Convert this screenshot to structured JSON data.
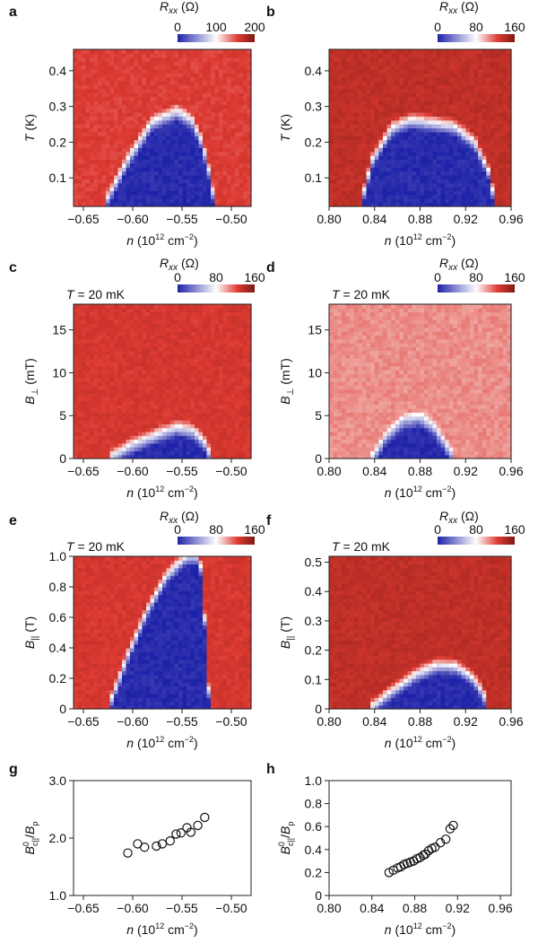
{
  "figure_type": "multi-panel heatmap and scatter figure",
  "cbar_title": "R_xx (Ω)",
  "chart_data": [
    {
      "panel": "a",
      "type": "heatmap",
      "xlabel": "n (10^12 cm^-2)",
      "ylabel": "T (K)",
      "x_ticks": [
        -0.65,
        -0.6,
        -0.55,
        -0.5
      ],
      "y_ticks": [
        0.1,
        0.2,
        0.3,
        0.4
      ],
      "x_tick_labels": [
        "−0.65",
        "−0.60",
        "−0.55",
        "−0.50"
      ],
      "y_tick_labels": [
        "0.1",
        "0.2",
        "0.3",
        "0.4"
      ],
      "xlim": [
        -0.66,
        -0.48
      ],
      "ylim": [
        0.02,
        0.46
      ],
      "colorbar": {
        "label": "R_xx (Ω)",
        "range": [
          0,
          200
        ],
        "ticks": [
          0,
          100,
          200
        ],
        "tick_labels": [
          "0",
          "100",
          "200"
        ]
      },
      "colormap": [
        "#1e22a8",
        "#ffffff",
        "#dd3a32",
        "#7d1a12"
      ],
      "annotation": "",
      "superconducting_dome": {
        "x": [
          -0.628,
          -0.605,
          -0.58,
          -0.555,
          -0.54,
          -0.53,
          -0.522,
          -0.517
        ],
        "y": [
          0.03,
          0.15,
          0.255,
          0.285,
          0.26,
          0.2,
          0.11,
          0.03
        ]
      },
      "background_level": 0.78
    },
    {
      "panel": "b",
      "type": "heatmap",
      "xlabel": "n (10^12 cm^-2)",
      "ylabel": "T (K)",
      "x_ticks": [
        0.8,
        0.84,
        0.88,
        0.92,
        0.96
      ],
      "y_ticks": [
        0.1,
        0.2,
        0.3,
        0.4
      ],
      "x_tick_labels": [
        "0.80",
        "0.84",
        "0.88",
        "0.92",
        "0.96"
      ],
      "y_tick_labels": [
        "0.1",
        "0.2",
        "0.3",
        "0.4"
      ],
      "xlim": [
        0.8,
        0.96
      ],
      "ylim": [
        0.02,
        0.46
      ],
      "colorbar": {
        "label": "R_xx (Ω)",
        "range": [
          0,
          160
        ],
        "ticks": [
          0,
          80,
          160
        ],
        "tick_labels": [
          "0",
          "80",
          "160"
        ]
      },
      "colormap": [
        "#1e22a8",
        "#ffffff",
        "#dd3a32",
        "#7d1a12"
      ],
      "annotation": "",
      "superconducting_dome": {
        "x": [
          0.828,
          0.838,
          0.855,
          0.872,
          0.89,
          0.91,
          0.928,
          0.94,
          0.946
        ],
        "y": [
          0.03,
          0.15,
          0.24,
          0.262,
          0.255,
          0.245,
          0.2,
          0.12,
          0.03
        ]
      },
      "background_level": 0.85
    },
    {
      "panel": "c",
      "type": "heatmap",
      "xlabel": "n (10^12 cm^-2)",
      "ylabel": "B⊥ (mT)",
      "x_ticks": [
        -0.65,
        -0.6,
        -0.55,
        -0.5
      ],
      "y_ticks": [
        0,
        5,
        10,
        15
      ],
      "x_tick_labels": [
        "−0.65",
        "−0.60",
        "−0.55",
        "−0.50"
      ],
      "y_tick_labels": [
        "0",
        "5",
        "10",
        "15"
      ],
      "xlim": [
        -0.66,
        -0.48
      ],
      "ylim": [
        0,
        18
      ],
      "colorbar": {
        "label": "R_xx (Ω)",
        "range": [
          0,
          160
        ],
        "ticks": [
          0,
          80,
          160
        ],
        "tick_labels": [
          "0",
          "80",
          "160"
        ]
      },
      "colormap": [
        "#1e22a8",
        "#ffffff",
        "#dd3a32",
        "#7d1a12"
      ],
      "annotation": "T = 20 mK",
      "superconducting_dome": {
        "x": [
          -0.625,
          -0.6,
          -0.575,
          -0.555,
          -0.54,
          -0.528,
          -0.52
        ],
        "y": [
          0,
          1.6,
          2.8,
          3.6,
          3.3,
          2.0,
          0
        ]
      },
      "background_level": 0.8
    },
    {
      "panel": "d",
      "type": "heatmap",
      "xlabel": "n (10^12 cm^-2)",
      "ylabel": "B⊥ (mT)",
      "x_ticks": [
        0.8,
        0.84,
        0.88,
        0.92,
        0.96
      ],
      "y_ticks": [
        0,
        5,
        10,
        15
      ],
      "x_tick_labels": [
        "0.80",
        "0.84",
        "0.88",
        "0.92",
        "0.96"
      ],
      "y_tick_labels": [
        "0",
        "5",
        "10",
        "15"
      ],
      "xlim": [
        0.8,
        0.96
      ],
      "ylim": [
        0,
        18
      ],
      "colorbar": {
        "label": "R_xx (Ω)",
        "range": [
          0,
          160
        ],
        "ticks": [
          0,
          80,
          160
        ],
        "tick_labels": [
          "0",
          "80",
          "160"
        ]
      },
      "colormap": [
        "#1e22a8",
        "#ffffff",
        "#dd3a32",
        "#7d1a12"
      ],
      "annotation": "T = 20 mK",
      "superconducting_dome": {
        "x": [
          0.838,
          0.85,
          0.865,
          0.88,
          0.892,
          0.9,
          0.91
        ],
        "y": [
          0,
          2.5,
          4.4,
          4.7,
          3.6,
          2.0,
          0
        ]
      },
      "background_level": 0.66
    },
    {
      "panel": "e",
      "type": "heatmap",
      "xlabel": "n (10^12 cm^-2)",
      "ylabel": "B∥ (T)",
      "x_ticks": [
        -0.65,
        -0.6,
        -0.55,
        -0.5
      ],
      "y_ticks": [
        0,
        0.2,
        0.4,
        0.6,
        0.8,
        1.0
      ],
      "x_tick_labels": [
        "−0.65",
        "−0.60",
        "−0.55",
        "−0.50"
      ],
      "y_tick_labels": [
        "0",
        "0.2",
        "0.4",
        "0.6",
        "0.8",
        "1.0"
      ],
      "xlim": [
        -0.66,
        -0.48
      ],
      "ylim": [
        0,
        1.0
      ],
      "colorbar": {
        "label": "R_xx (Ω)",
        "range": [
          0,
          160
        ],
        "ticks": [
          0,
          80,
          160
        ],
        "tick_labels": [
          "0",
          "80",
          "160"
        ]
      },
      "colormap": [
        "#1e22a8",
        "#ffffff",
        "#dd3a32",
        "#7d1a12"
      ],
      "annotation": "T = 20 mK",
      "superconducting_dome": {
        "x": [
          -0.625,
          -0.605,
          -0.585,
          -0.565,
          -0.545,
          -0.532,
          -0.526,
          -0.522
        ],
        "y": [
          0,
          0.35,
          0.65,
          0.88,
          1.0,
          1.0,
          0.5,
          0
        ]
      },
      "background_level": 0.8
    },
    {
      "panel": "f",
      "type": "heatmap",
      "xlabel": "n (10^12 cm^-2)",
      "ylabel": "B∥ (T)",
      "x_ticks": [
        0.8,
        0.84,
        0.88,
        0.92,
        0.96
      ],
      "y_ticks": [
        0,
        0.1,
        0.2,
        0.3,
        0.4,
        0.5
      ],
      "x_tick_labels": [
        "0.80",
        "0.84",
        "0.88",
        "0.92",
        "0.96"
      ],
      "y_tick_labels": [
        "0",
        "0.1",
        "0.2",
        "0.3",
        "0.4",
        "0.5"
      ],
      "xlim": [
        0.8,
        0.96
      ],
      "ylim": [
        0,
        0.52
      ],
      "colorbar": {
        "label": "R_xx (Ω)",
        "range": [
          0,
          160
        ],
        "ticks": [
          0,
          80,
          160
        ],
        "tick_labels": [
          "0",
          "80",
          "160"
        ]
      },
      "colormap": [
        "#1e22a8",
        "#ffffff",
        "#dd3a32",
        "#7d1a12"
      ],
      "annotation": "T = 20 mK",
      "superconducting_dome": {
        "x": [
          0.835,
          0.855,
          0.875,
          0.895,
          0.912,
          0.925,
          0.935,
          0.94
        ],
        "y": [
          0,
          0.06,
          0.115,
          0.15,
          0.145,
          0.11,
          0.06,
          0
        ]
      },
      "background_level": 0.85
    },
    {
      "panel": "g",
      "type": "scatter",
      "xlabel": "n (10^12 cm^-2)",
      "ylabel": "B0_c∥/B_p",
      "x_ticks": [
        -0.65,
        -0.6,
        -0.55,
        -0.5
      ],
      "y_ticks": [
        1.0,
        2.0,
        3.0
      ],
      "x_tick_labels": [
        "−0.65",
        "−0.60",
        "−0.55",
        "−0.50"
      ],
      "y_tick_labels": [
        "1.0",
        "2.0",
        "3.0"
      ],
      "xlim": [
        -0.66,
        -0.48
      ],
      "ylim": [
        1.0,
        3.0
      ],
      "x": [
        -0.605,
        -0.595,
        -0.588,
        -0.576,
        -0.57,
        -0.562,
        -0.556,
        -0.551,
        -0.545,
        -0.541,
        -0.534,
        -0.527
      ],
      "y": [
        1.74,
        1.9,
        1.84,
        1.86,
        1.9,
        1.95,
        2.07,
        2.09,
        2.18,
        2.1,
        2.22,
        2.36
      ]
    },
    {
      "panel": "h",
      "type": "scatter",
      "xlabel": "n (10^12 cm^-2)",
      "ylabel": "B0_c∥/B_p",
      "x_ticks": [
        0.8,
        0.84,
        0.88,
        0.92,
        0.96
      ],
      "y_ticks": [
        0,
        0.2,
        0.4,
        0.6,
        0.8,
        1.0
      ],
      "x_tick_labels": [
        "0.80",
        "0.84",
        "0.88",
        "0.92",
        "0.96"
      ],
      "y_tick_labels": [
        "0",
        "0.2",
        "0.4",
        "0.6",
        "0.8",
        "1.0"
      ],
      "xlim": [
        0.8,
        0.97
      ],
      "ylim": [
        0,
        1.0
      ],
      "x": [
        0.856,
        0.86,
        0.864,
        0.867,
        0.87,
        0.873,
        0.876,
        0.879,
        0.882,
        0.885,
        0.888,
        0.89,
        0.893,
        0.896,
        0.899,
        0.904,
        0.909,
        0.913,
        0.916
      ],
      "y": [
        0.2,
        0.22,
        0.24,
        0.25,
        0.27,
        0.28,
        0.29,
        0.3,
        0.32,
        0.33,
        0.35,
        0.36,
        0.39,
        0.41,
        0.42,
        0.46,
        0.49,
        0.58,
        0.61
      ]
    }
  ]
}
